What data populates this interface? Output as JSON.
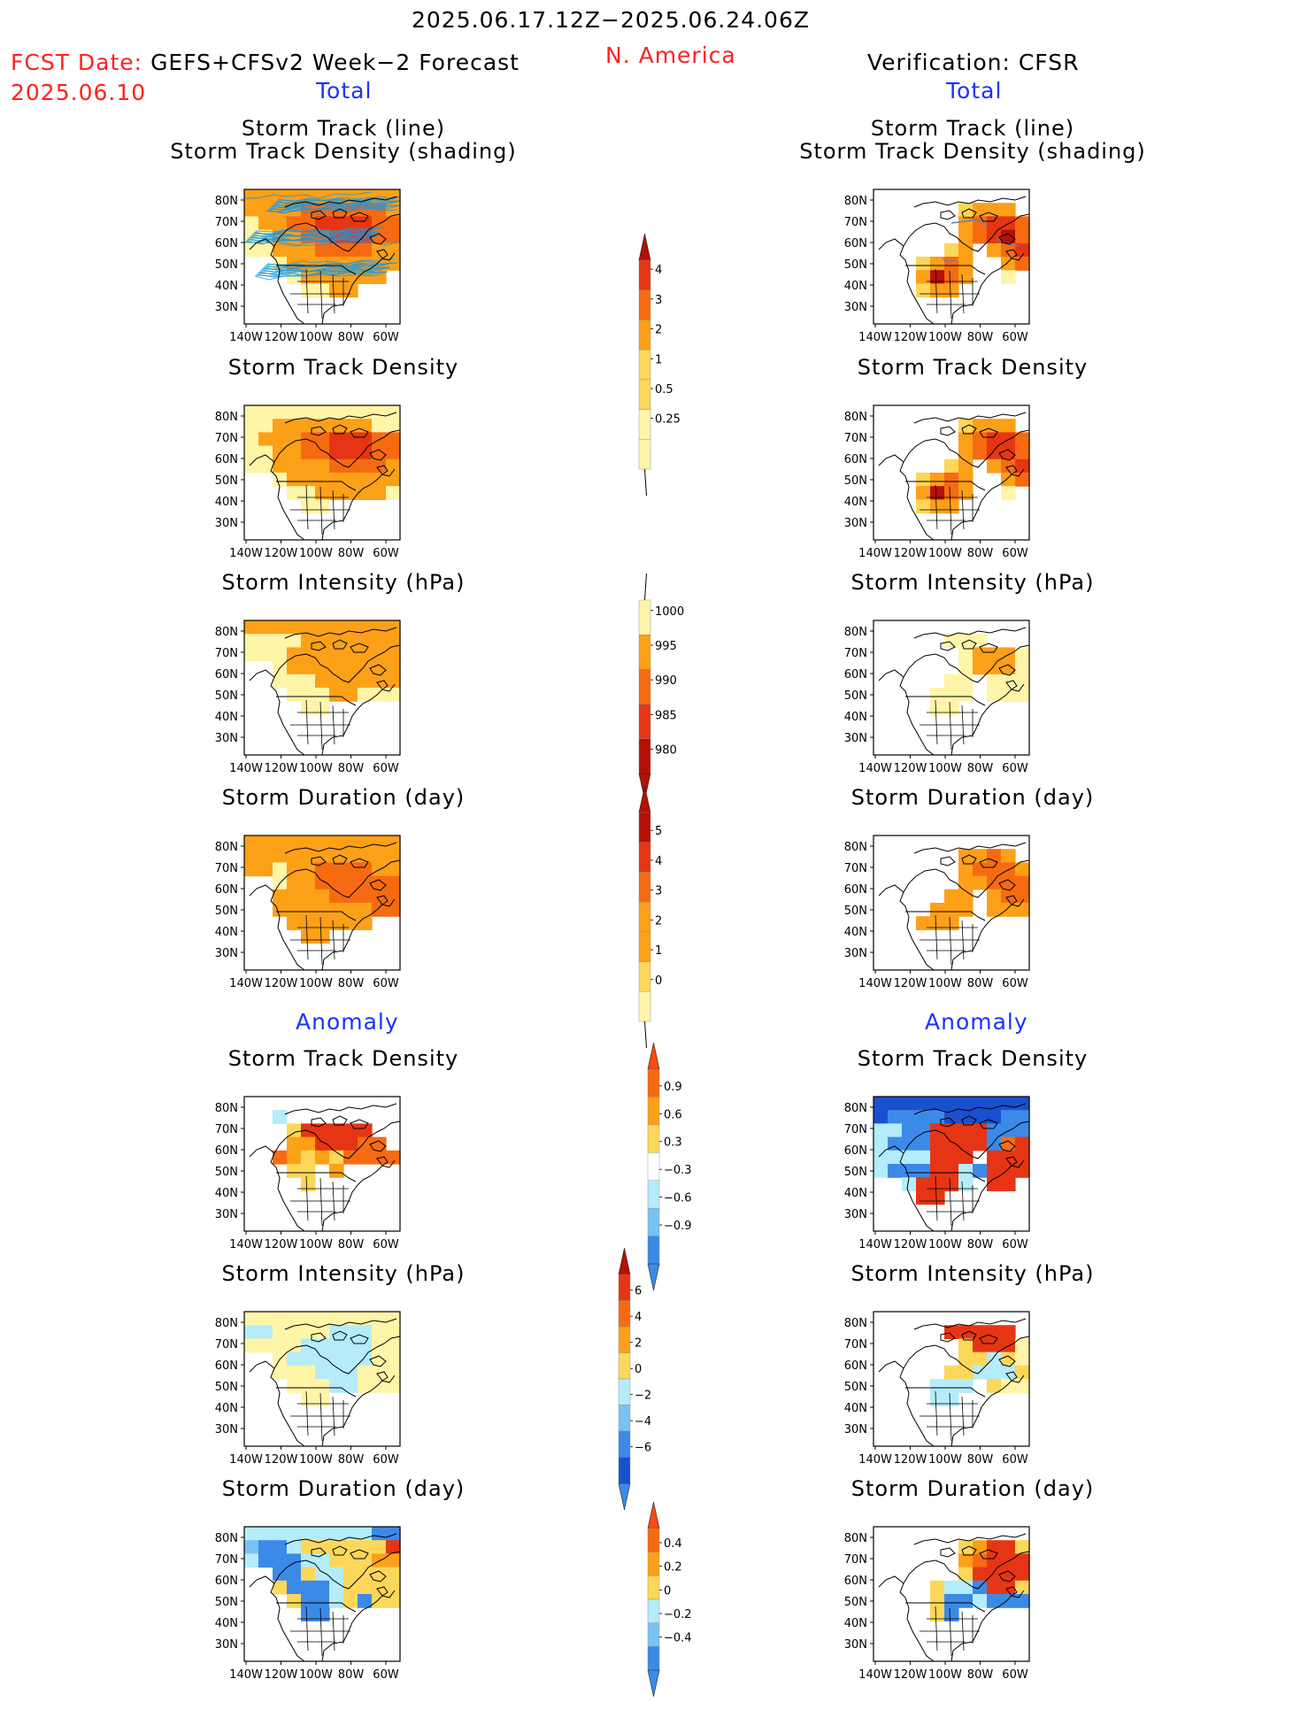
{
  "header": {
    "date_range": "2025.06.17.12Z−2025.06.24.06Z",
    "fcst_date_label": "FCST Date:",
    "fcst_product": "GEFS+CFSv2 Week−2 Forecast",
    "fcst_date_value": "2025.06.10",
    "region": "N. America",
    "verification": "Verification: CFSR"
  },
  "sections": {
    "total": "Total",
    "anomaly": "Anomaly"
  },
  "panel_titles": {
    "track_line": "Storm Track (line)",
    "track_density_shading": "Storm Track Density (shading)",
    "track_density": "Storm Track Density",
    "intensity": "Storm Intensity (hPa)",
    "duration": "Storm Duration (day)"
  },
  "axes": {
    "lat_ticks": [
      "80N",
      "70N",
      "60N",
      "50N",
      "40N",
      "30N"
    ],
    "lon_ticks": [
      "140W",
      "120W",
      "100W",
      "80W",
      "60W"
    ]
  },
  "colorbars": {
    "density_total": [
      "4",
      "3",
      "2",
      "1",
      "0.5",
      "0.25"
    ],
    "intensity_total": [
      "1000",
      "995",
      "990",
      "985",
      "980"
    ],
    "duration_total": [
      "5",
      "4",
      "3",
      "2",
      "1",
      "0"
    ],
    "density_anom": [
      "0.9",
      "0.6",
      "0.3",
      "−0.3",
      "−0.6",
      "−0.9"
    ],
    "intensity_anom": [
      "6",
      "4",
      "2",
      "0",
      "−2",
      "−4",
      "−6"
    ],
    "duration_anom": [
      "0.4",
      "0.2",
      "0",
      "−0.2",
      "−0.4"
    ]
  },
  "colors": {
    "lightyellow": "#fff5a8",
    "yellow": "#fcd75a",
    "orange": "#fca018",
    "darkorange": "#f66b12",
    "red": "#e63514",
    "darkred": "#b41004",
    "lightblue": "#b4ecfa",
    "midblue": "#78c2f4",
    "blue": "#3c8ae8",
    "darkblue": "#1a4fd0",
    "track_line": "#1e96dc",
    "title_red": "#ff2020",
    "title_blue": "#1a32ff"
  }
}
